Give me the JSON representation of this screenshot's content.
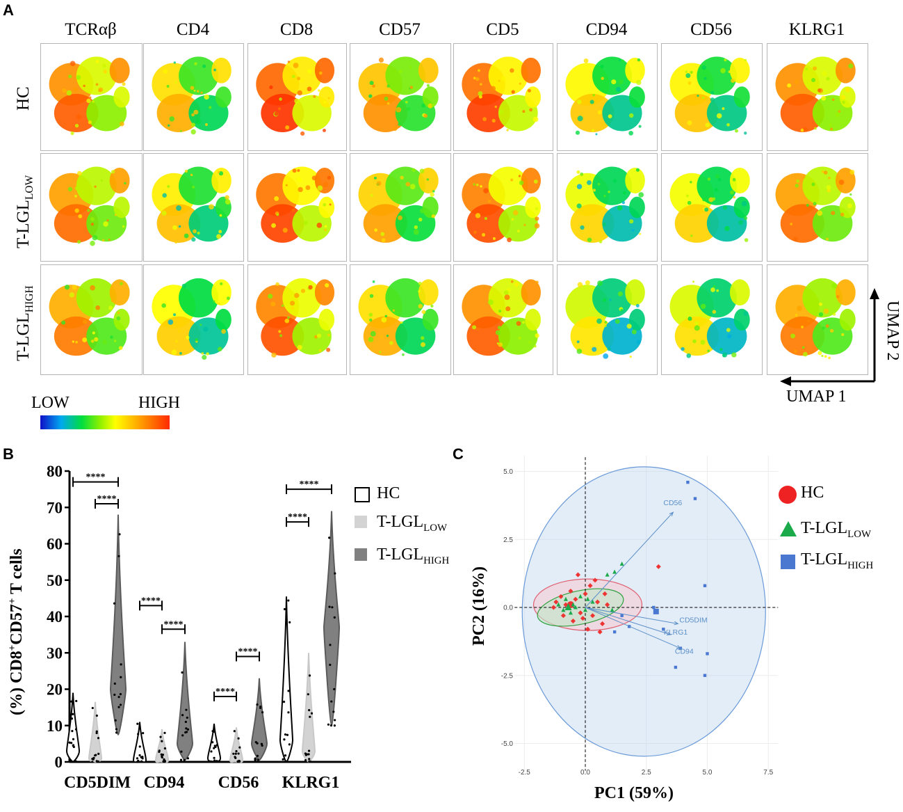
{
  "panel_a": {
    "label": "A",
    "markers": [
      "TCRαβ",
      "CD4",
      "CD8",
      "CD57",
      "CD5",
      "CD94",
      "CD56",
      "KLRG1"
    ],
    "rows": [
      {
        "name": "HC",
        "sub": ""
      },
      {
        "name": "T-LGL",
        "sub": "LOW"
      },
      {
        "name": "T-LGL",
        "sub": "HIGH"
      }
    ],
    "legend": {
      "low": "LOW",
      "high": "HIGH"
    },
    "axes": {
      "x": "UMAP 1",
      "y": "UMAP 2"
    }
  },
  "panel_b": {
    "label": "B",
    "ylabel_pre": "(%) CD8",
    "ylabel_sup1": "+",
    "ylabel_mid": "CD57",
    "ylabel_sup2": "+",
    "ylabel_post": " T cells",
    "sig": "****",
    "legend": [
      {
        "name": "HC",
        "sub": "",
        "color": "#ffffff"
      },
      {
        "name": "T-LGL",
        "sub": "LOW",
        "color": "#d3d3d3"
      },
      {
        "name": "T-LGL",
        "sub": "HIGH",
        "color": "#808080"
      }
    ]
  },
  "panel_c": {
    "label": "C",
    "xlabel": "PC1 (59%)",
    "ylabel": "PC2 (16%)",
    "legend": [
      {
        "name": "HC",
        "sub": "",
        "color": "#ee2222",
        "shape": "circle"
      },
      {
        "name": "T-LGL",
        "sub": "LOW",
        "color": "#1aaa4a",
        "shape": "triangle"
      },
      {
        "name": "T-LGL",
        "sub": "HIGH",
        "color": "#4a78d0",
        "shape": "square"
      }
    ],
    "arrow_labels": [
      "CD56",
      "CD5DIM",
      "KLRG1",
      "CD94"
    ]
  },
  "chart_data": [
    {
      "type": "violin",
      "title": "",
      "ylabel": "(%) CD8+CD57+ T cells",
      "ylim": [
        0,
        80
      ],
      "yticks": [
        0,
        10,
        20,
        30,
        40,
        50,
        60,
        70,
        80
      ],
      "categories": [
        "CD5DIM",
        "CD94",
        "CD56",
        "KLRG1"
      ],
      "series": [
        {
          "name": "HC",
          "max": [
            19,
            11,
            10.5,
            45.5
          ],
          "median": [
            3,
            0.5,
            1,
            6
          ]
        },
        {
          "name": "T-LGLLOW",
          "max": [
            16.5,
            9,
            9.5,
            30
          ],
          "median": [
            1,
            0.5,
            0.5,
            3
          ]
        },
        {
          "name": "T-LGLHIGH",
          "min": [
            7.5,
            0.5,
            0.5,
            10
          ],
          "max": [
            68,
            33,
            23,
            69
          ],
          "median": [
            20,
            5,
            5,
            37
          ]
        }
      ],
      "significance": [
        {
          "category": "CD5DIM",
          "pair": [
            "HC",
            "T-LGLHIGH"
          ],
          "label": "****",
          "y": 77
        },
        {
          "category": "CD5DIM",
          "pair": [
            "T-LGLLOW",
            "T-LGLHIGH"
          ],
          "label": "****",
          "y": 71
        },
        {
          "category": "CD94",
          "pair": [
            "HC",
            "T-LGLLOW"
          ],
          "label": "****",
          "y": 43
        },
        {
          "category": "CD94",
          "pair": [
            "T-LGLLOW",
            "T-LGLHIGH"
          ],
          "label": "****",
          "y": 36.5
        },
        {
          "category": "CD56",
          "pair": [
            "HC",
            "T-LGLLOW"
          ],
          "label": "****",
          "y": 18
        },
        {
          "category": "CD56",
          "pair": [
            "T-LGLLOW",
            "T-LGLHIGH"
          ],
          "label": "****",
          "y": 29
        },
        {
          "category": "KLRG1",
          "pair": [
            "HC",
            "T-LGLHIGH"
          ],
          "label": "****",
          "y": 75
        },
        {
          "category": "KLRG1",
          "pair": [
            "HC",
            "T-LGLLOW"
          ],
          "label": "****",
          "y": 66
        }
      ]
    },
    {
      "type": "scatter",
      "title": "",
      "xlabel": "PC1 (59%)",
      "ylabel": "PC2 (16%)",
      "xlim": [
        -3,
        8
      ],
      "ylim": [
        -6,
        5.8
      ],
      "xticks": [
        -2.5,
        0.0,
        2.5,
        5.0,
        7.5
      ],
      "yticks": [
        -5.0,
        -2.5,
        0.0,
        2.5,
        5.0
      ],
      "tick_labels_x": [
        "-2.5",
        "0.0",
        "2.5",
        "5.0",
        "7.5"
      ],
      "tick_labels_y": [
        "-5.0",
        "-2.5",
        "0.0",
        "2.5",
        "5.0"
      ],
      "series": [
        {
          "name": "HC",
          "points": [
            [
              -1.2,
              0.2
            ],
            [
              -1.0,
              0.4
            ],
            [
              -0.8,
              0.1
            ],
            [
              -0.6,
              0.6
            ],
            [
              -0.4,
              0.3
            ],
            [
              -0.2,
              -0.2
            ],
            [
              0.0,
              0.5
            ],
            [
              0.2,
              0.8
            ],
            [
              0.3,
              -0.3
            ],
            [
              0.5,
              0.2
            ],
            [
              0.7,
              -0.6
            ],
            [
              0.9,
              0.1
            ],
            [
              -0.9,
              -0.3
            ],
            [
              -0.5,
              -0.5
            ],
            [
              0.1,
              -0.8
            ],
            [
              -0.3,
              1.2
            ],
            [
              0.4,
              1.0
            ],
            [
              -1.3,
              0.0
            ],
            [
              0.6,
              -0.9
            ],
            [
              3.0,
              1.5
            ],
            [
              -0.1,
              -0.4
            ],
            [
              0.8,
              0.5
            ]
          ],
          "centroid": [
            -0.6,
            0.1
          ]
        },
        {
          "name": "T-LGLLOW",
          "points": [
            [
              -1.1,
              0.1
            ],
            [
              -0.8,
              0.3
            ],
            [
              -0.6,
              -0.2
            ],
            [
              -0.4,
              0.0
            ],
            [
              -0.2,
              0.4
            ],
            [
              0.0,
              -0.1
            ],
            [
              0.3,
              0.2
            ],
            [
              -0.9,
              -0.1
            ],
            [
              1.2,
              1.3
            ],
            [
              1.5,
              1.6
            ],
            [
              0.9,
              1.2
            ],
            [
              1.1,
              -0.1
            ],
            [
              -0.5,
              0.1
            ],
            [
              0.1,
              0.3
            ]
          ],
          "centroid": [
            -0.7,
            0.0
          ]
        },
        {
          "name": "T-LGLHIGH",
          "points": [
            [
              4.2,
              4.6
            ],
            [
              4.5,
              4.0
            ],
            [
              4.9,
              0.8
            ],
            [
              5.0,
              -1.7
            ],
            [
              4.9,
              -2.5
            ],
            [
              3.7,
              -2.2
            ],
            [
              3.9,
              -1.5
            ],
            [
              2.8,
              0.0
            ],
            [
              1.8,
              -0.7
            ],
            [
              1.2,
              -0.9
            ],
            [
              3.2,
              -0.8
            ],
            [
              1.5,
              -0.3
            ]
          ],
          "centroid": [
            2.9,
            -0.15
          ]
        }
      ],
      "loadings": [
        {
          "name": "CD56",
          "x": 3.6,
          "y": 3.5
        },
        {
          "name": "CD5DIM",
          "x": 3.8,
          "y": -0.6
        },
        {
          "name": "KLRG1",
          "x": 3.5,
          "y": -1.0
        },
        {
          "name": "CD94",
          "x": 3.9,
          "y": -1.5
        }
      ]
    }
  ]
}
